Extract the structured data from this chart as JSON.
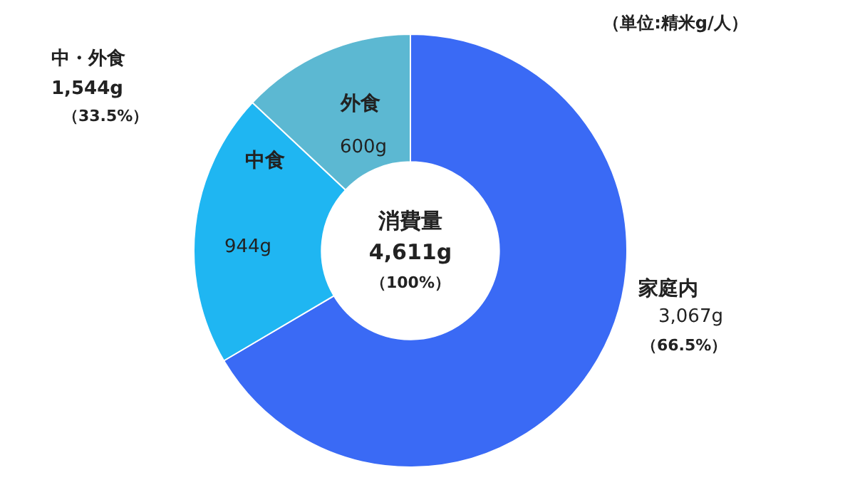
{
  "chart_data": {
    "type": "donut",
    "categories": [
      "家庭内",
      "中食",
      "外食"
    ],
    "values": [
      3067,
      944,
      600
    ],
    "colors": [
      "#3a6af5",
      "#1fb6f2",
      "#5cb8d2"
    ],
    "value_labels": [
      "3,067g",
      "944g",
      "600g"
    ],
    "annotations": [
      "消費量",
      "4,611g",
      "（100%）",
      "中・外食",
      "1,544g",
      "（33.5%）",
      "（66.5%）",
      "（単位:精米g/人）"
    ],
    "legend": false
  }
}
